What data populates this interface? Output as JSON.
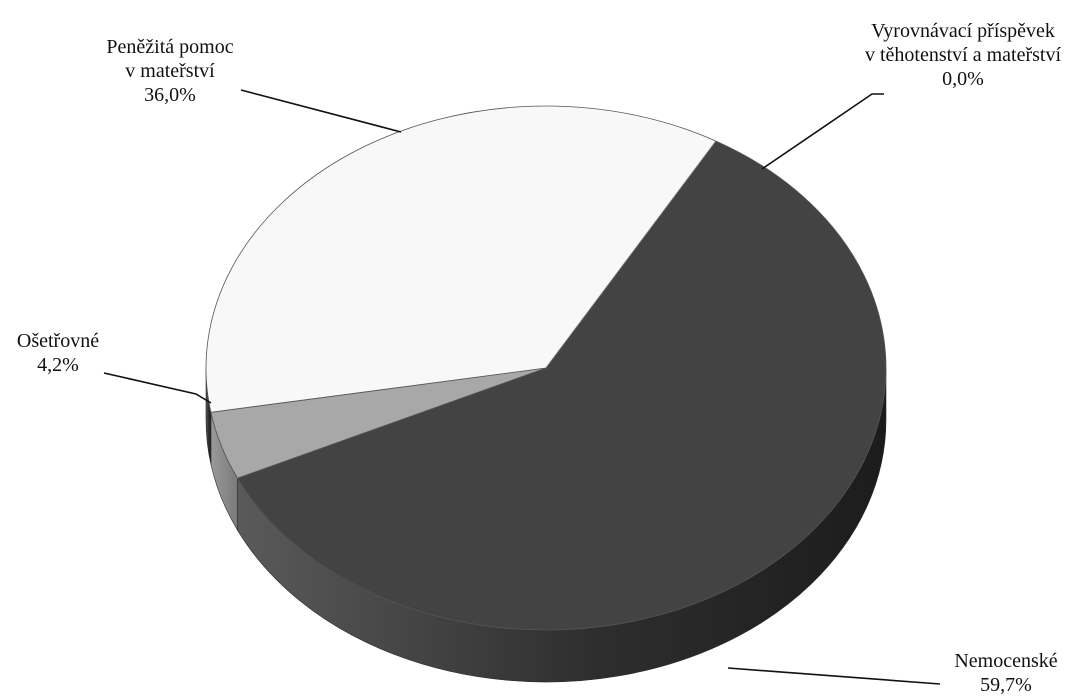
{
  "chart_data": {
    "type": "pie",
    "three_d": true,
    "title": "",
    "slices": [
      {
        "label_lines": [
          "Nemocenské"
        ],
        "value": 59.7,
        "value_text": "59,7%",
        "color": "#434343"
      },
      {
        "label_lines": [
          "Ošetřovné"
        ],
        "value": 4.2,
        "value_text": "4,2%",
        "color": "#a8a8a8"
      },
      {
        "label_lines": [
          "Peněžitá pomoc",
          "v mateřství"
        ],
        "value": 36.0,
        "value_text": "36,0%",
        "color": "#f8f8f8"
      },
      {
        "label_lines": [
          "Vyrovnávací příspěvek",
          "v těhotenství a mateřství"
        ],
        "value": 0.0,
        "value_text": "0,0%",
        "color": "#e6e6e6"
      }
    ]
  }
}
